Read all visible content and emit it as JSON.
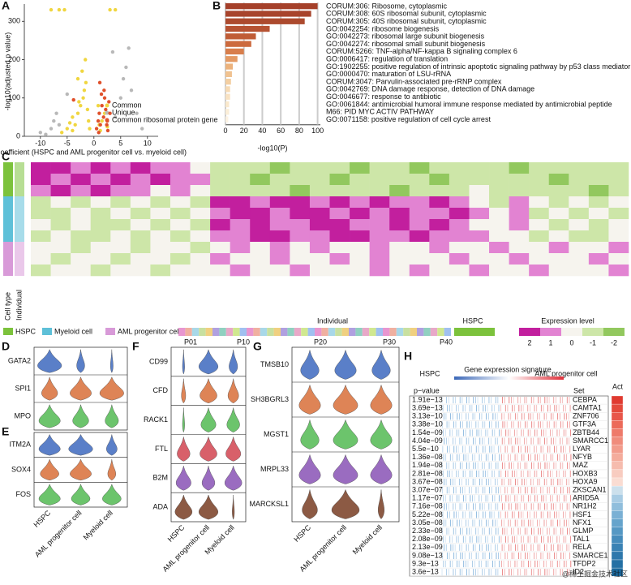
{
  "panel_a": {
    "label": "A",
    "type": "scatter",
    "xlabel": "Coefficient (HSPC and AML progenitor cell vs. myeloid cell)",
    "ylabel": "-log10(adjusted p value)",
    "xlim": [
      -13,
      12
    ],
    "ylim": [
      0,
      345
    ],
    "xticks": [
      -10,
      -5,
      0,
      5,
      10
    ],
    "yticks": [
      0,
      100,
      200,
      300
    ],
    "series": [
      {
        "name": "Common",
        "color": "#f0d640",
        "x": [
          -6,
          -5,
          -4.5,
          -4,
          -3.5,
          -3,
          -2.5,
          -2,
          -1.8,
          -1.5,
          -1.2,
          -1,
          -0.8,
          -3,
          -2.2,
          -4,
          -1.6,
          -2.8,
          1,
          1.5,
          2,
          2.5,
          0.8,
          1.2,
          -8,
          -6.5,
          -5.5,
          3,
          4
        ],
        "y": [
          10,
          20,
          35,
          50,
          30,
          60,
          80,
          100,
          120,
          140,
          70,
          40,
          20,
          150,
          170,
          15,
          200,
          90,
          30,
          40,
          60,
          25,
          80,
          15,
          330,
          330,
          330,
          330,
          330
        ]
      },
      {
        "name": "Unique",
        "color": "#b8b8b8",
        "x": [
          -9,
          -8,
          -7.5,
          -7,
          -6.5,
          4,
          5,
          5.5,
          6,
          7,
          8,
          -10,
          9,
          3.5,
          6.5,
          -5
        ],
        "y": [
          5,
          20,
          40,
          60,
          30,
          50,
          100,
          150,
          180,
          120,
          60,
          10,
          20,
          220,
          230,
          110
        ]
      },
      {
        "name": "Common ribosomal protein gene",
        "color": "#e0502a",
        "x": [
          0.5,
          0.8,
          1,
          1.2,
          1.5,
          1.8,
          2,
          2.2,
          2.5,
          2.8,
          3,
          1.4,
          1.9,
          0.9,
          2.4,
          -3.8,
          1.1,
          2.6
        ],
        "y": [
          20,
          40,
          60,
          30,
          80,
          50,
          100,
          70,
          40,
          90,
          60,
          110,
          120,
          10,
          30,
          95,
          140,
          15
        ]
      }
    ]
  },
  "panel_b": {
    "label": "B",
    "type": "bar",
    "xlabel": "-log10(P)",
    "xlim": [
      0,
      103
    ],
    "xticks": [
      0,
      20,
      40,
      60,
      80,
      100
    ],
    "categories": [
      "CORUM:306: Ribosome, cytoplasmic",
      "CORUM:308: 60S ribosomal subunit, cytoplasmic",
      "CORUM:305: 40S ribosomal subunit, cytoplasmic",
      "GO:0042254: ribosome biogenesis",
      "GO:0042273: ribosomal large subunit biogenesis",
      "GO:0042274: ribosomal small subunit biogenesis",
      "CORUM:5266: TNF-alpha/NF-kappa B signaling complex 6",
      "GO:0006417: regulation of translation",
      "GO:1902255: positive regulation of intrinsic apoptotic signaling pathway by p53 class mediator",
      "GO:0000470: maturation of LSU-rRNA",
      "CORUM:3047: Parvulin-associated pre-rRNP complex",
      "GO:0042769: DNA damage response, detection of DNA damage",
      "GO:0046677: response to antibiotic",
      "GO:0061844: antimicrobial humoral immune response mediated by antimicrobial peptide",
      "M66: PID MYC ACTIV PATHWAY",
      "GO:0071158: positive regulation of cell cycle arrest"
    ],
    "values": [
      100,
      93,
      86,
      48,
      33,
      28,
      20,
      13,
      8,
      7,
      6,
      5,
      5,
      4,
      4,
      3
    ],
    "colors": [
      "#a5402a",
      "#a8442c",
      "#ac4a2e",
      "#b65232",
      "#c05c36",
      "#cc6a3e",
      "#d87e4c",
      "#e49a64",
      "#ecb27c",
      "#f0c290",
      "#f3cfa2",
      "#f6dab4",
      "#f8e2c2",
      "#f9e8cc",
      "#fbeed8",
      "#fcf2e2"
    ]
  },
  "panel_c": {
    "label": "C",
    "type": "heatmap",
    "row_groups": [
      "Cell type",
      "Individual"
    ],
    "cell_types": [
      {
        "name": "HSPC",
        "color": "#7cc23c"
      },
      {
        "name": "Myeloid cell",
        "color": "#5ec0d8"
      },
      {
        "name": "AML progenitor cell",
        "color": "#d89ad8"
      }
    ],
    "row_type": [
      0,
      0,
      0,
      1,
      1,
      1,
      1,
      2,
      2,
      2
    ],
    "individual_title": "Individual",
    "individual_labels": [
      "P01",
      "P10",
      "P20",
      "P30",
      "P40",
      "HSPC"
    ],
    "legend_title": "Expression level",
    "levels": [
      2,
      1,
      0,
      -1,
      -2
    ],
    "level_colors": [
      "#c21f9e",
      "#e283d2",
      "#f6f4ee",
      "#cde6a8",
      "#92c85e"
    ],
    "matrix": [
      [
        2,
        2,
        1,
        2,
        1,
        2,
        1,
        1,
        0,
        -1,
        -1,
        -1,
        -2,
        -1,
        -1,
        -1,
        -2,
        -1,
        -1,
        -2,
        -1,
        -1,
        -1,
        -1,
        -2,
        -1,
        -1,
        -1,
        -1,
        -1
      ],
      [
        2,
        1,
        2,
        1,
        2,
        1,
        2,
        1,
        1,
        -1,
        -1,
        -2,
        -1,
        -1,
        -1,
        -2,
        -1,
        -1,
        -1,
        -1,
        -2,
        -1,
        -1,
        -1,
        -1,
        -1,
        -2,
        -1,
        -1,
        -1
      ],
      [
        1,
        2,
        1,
        2,
        1,
        1,
        0,
        1,
        0,
        -1,
        -1,
        -1,
        -1,
        -2,
        -1,
        -1,
        -1,
        -1,
        -2,
        -1,
        -1,
        -1,
        0,
        -1,
        -1,
        -1,
        -1,
        -1,
        -2,
        -1
      ],
      [
        -1,
        0,
        -1,
        0,
        -1,
        0,
        -1,
        0,
        -1,
        2,
        2,
        1,
        2,
        2,
        1,
        2,
        1,
        2,
        1,
        1,
        2,
        1,
        0,
        -1,
        1,
        0,
        -1,
        0,
        -1,
        0
      ],
      [
        -1,
        -1,
        0,
        -1,
        0,
        -1,
        0,
        -1,
        0,
        1,
        2,
        2,
        1,
        2,
        2,
        1,
        2,
        1,
        2,
        1,
        1,
        2,
        1,
        0,
        1,
        -1,
        0,
        -1,
        0,
        -1
      ],
      [
        0,
        -1,
        0,
        -1,
        -1,
        0,
        -1,
        0,
        -1,
        2,
        1,
        2,
        1,
        1,
        2,
        2,
        1,
        1,
        2,
        1,
        2,
        1,
        0,
        0,
        1,
        0,
        -1,
        0,
        -1,
        0
      ],
      [
        -1,
        0,
        -1,
        -1,
        0,
        -1,
        0,
        -1,
        0,
        1,
        1,
        2,
        2,
        1,
        1,
        2,
        2,
        1,
        1,
        2,
        1,
        1,
        1,
        0,
        0,
        -1,
        0,
        -1,
        -1,
        0
      ],
      [
        0,
        0,
        -1,
        0,
        0,
        -1,
        0,
        0,
        -1,
        0,
        1,
        0,
        1,
        0,
        1,
        0,
        0,
        1,
        0,
        0,
        1,
        0,
        0,
        1,
        0,
        0,
        1,
        0,
        0,
        1
      ],
      [
        0,
        -1,
        0,
        0,
        -1,
        0,
        0,
        -1,
        0,
        1,
        0,
        0,
        1,
        0,
        0,
        1,
        0,
        1,
        0,
        0,
        0,
        1,
        0,
        0,
        1,
        0,
        0,
        0,
        1,
        0
      ],
      [
        -1,
        0,
        0,
        -1,
        0,
        0,
        -1,
        0,
        0,
        0,
        1,
        0,
        0,
        1,
        0,
        0,
        0,
        1,
        0,
        1,
        0,
        0,
        1,
        0,
        0,
        1,
        0,
        0,
        0,
        1
      ]
    ]
  },
  "violins": [
    {
      "label": "D",
      "genes": [
        {
          "name": "GATA2",
          "color": "#5a7fc8",
          "widths": [
            0.9,
            0.3,
            0.1
          ]
        },
        {
          "name": "SPI1",
          "color": "#de8456",
          "widths": [
            0.6,
            0.8,
            0.9
          ]
        },
        {
          "name": "MPO",
          "color": "#6cc46c",
          "widths": [
            0.8,
            0.6,
            0.5
          ]
        }
      ]
    },
    {
      "label": "E",
      "genes": [
        {
          "name": "ITM2A",
          "color": "#5a7fc8",
          "widths": [
            0.8,
            0.9,
            0.4
          ]
        },
        {
          "name": "SOX4",
          "color": "#de8456",
          "widths": [
            0.7,
            0.8,
            0.3
          ]
        },
        {
          "name": "FOS",
          "color": "#6cc46c",
          "widths": [
            0.8,
            0.7,
            0.7
          ]
        }
      ]
    },
    {
      "label": "F",
      "genes": [
        {
          "name": "CD99",
          "color": "#5a7fc8",
          "widths": [
            0.1,
            0.9,
            0.4
          ]
        },
        {
          "name": "CFD",
          "color": "#de8456",
          "widths": [
            0.2,
            0.8,
            0.5
          ]
        },
        {
          "name": "RACK1",
          "color": "#6cc46c",
          "widths": [
            0.1,
            0.7,
            0.6
          ]
        },
        {
          "name": "FTL",
          "color": "#d8606a",
          "widths": [
            0.6,
            0.8,
            0.7
          ]
        },
        {
          "name": "B2M",
          "color": "#9a6cc0",
          "widths": [
            0.7,
            0.6,
            0.8
          ]
        },
        {
          "name": "ADA",
          "color": "#8c5a44",
          "widths": [
            0.8,
            0.9,
            0.1
          ]
        }
      ]
    },
    {
      "label": "G",
      "genes": [
        {
          "name": "TMSB10",
          "color": "#5a7fc8",
          "widths": [
            0.6,
            0.7,
            0.6
          ]
        },
        {
          "name": "SH3BGRL3",
          "color": "#de8456",
          "widths": [
            0.7,
            0.8,
            0.7
          ]
        },
        {
          "name": "MGST1",
          "color": "#6cc46c",
          "widths": [
            0.6,
            0.8,
            0.7
          ]
        },
        {
          "name": "MRPL33",
          "color": "#9a6cc0",
          "widths": [
            0.7,
            0.8,
            0.7
          ]
        },
        {
          "name": "MARCKSL1",
          "color": "#8c5a44",
          "widths": [
            0.5,
            0.9,
            0.2
          ]
        }
      ]
    }
  ],
  "violin_groups": [
    "HSPC",
    "AML progenitor cell",
    "Myeloid cell"
  ],
  "panel_h": {
    "label": "H",
    "left": "HSPC",
    "title": "Gene expression signature",
    "right": "AML progenitor cell",
    "col_p": "p−value",
    "col_set": "Set",
    "col_act": "Act",
    "rows": [
      [
        "1.91e−13",
        "CEBPA"
      ],
      [
        "3.69e−13",
        "CAMTA1"
      ],
      [
        "3.13e−10",
        "ZNF706"
      ],
      [
        "3.38e−10",
        "GTF3A"
      ],
      [
        "1.54e−09",
        "ZBTB44"
      ],
      [
        "4.04e−09",
        "SMARCC1"
      ],
      [
        "5.5e−10",
        "LYAR"
      ],
      [
        "1.36e−08",
        "NFYB"
      ],
      [
        "1.94e−08",
        "MAZ"
      ],
      [
        "2.81e−08",
        "HOXB3"
      ],
      [
        "3.67e−08",
        "HOXA9"
      ],
      [
        "3.07e−07",
        "ZKSCAN1"
      ],
      [
        "1.17e−07",
        "ARID5A"
      ],
      [
        "7.16e−08",
        "NR1H2"
      ],
      [
        "5.22e−08",
        "HSF1"
      ],
      [
        "3.05e−08",
        "NFX1"
      ],
      [
        "2.33e−08",
        "GLMP"
      ],
      [
        "2.08e−09",
        "TAL1"
      ],
      [
        "2.13e−09",
        "RELA"
      ],
      [
        "9.08e−13",
        "SMARCE1"
      ],
      [
        "9.3e−13",
        "TFDP2"
      ],
      [
        "3.6e−13",
        "ID2"
      ]
    ],
    "act_colors": [
      "#e03a30",
      "#e44a3c",
      "#e8564a",
      "#ec6a5a",
      "#ee7a6a",
      "#f08c7c",
      "#f29c8c",
      "#f4ac9c",
      "#f6bcae",
      "#f8ccc0",
      "#fadcd2",
      "#cce0ec",
      "#a8cce4",
      "#90bedc",
      "#7ab0d4",
      "#66a4cc",
      "#5598c4",
      "#468cbc",
      "#3a82b4",
      "#2e78ac",
      "#2470a4",
      "#1a689c"
    ]
  },
  "watermark": "@稀土掘金技术社区"
}
